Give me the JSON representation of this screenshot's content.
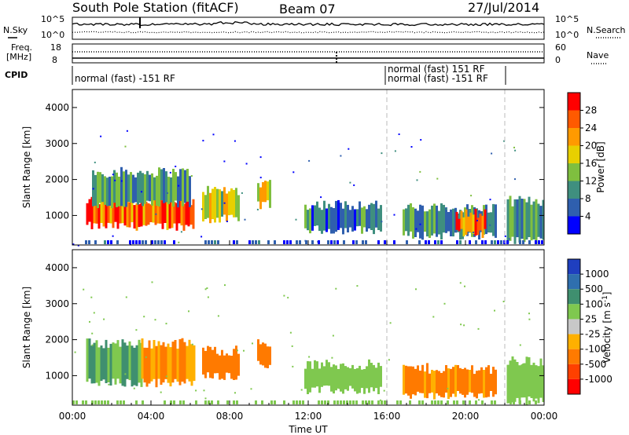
{
  "header": {
    "station": "South Pole Station (fitACF)",
    "beam": "Beam 07",
    "date": "27/Jul/2014"
  },
  "strip": {
    "nsky_label": "N.Sky",
    "nsearch_label": "N.Search",
    "noise_ticks_left": [
      "10^5",
      "10^0"
    ],
    "noise_ticks_right": [
      "10^5",
      "10^0"
    ],
    "freq_label_1": "Freq.",
    "freq_label_2": "[MHz]",
    "freq_ticks": [
      "18",
      "8"
    ],
    "nave_label": "Nave",
    "nave_ticks": [
      "60",
      "0"
    ],
    "cpid_label": "CPID",
    "cpid_segments": [
      {
        "text": "normal (fast) -151 RF"
      },
      {
        "text": "normal (fast) 151 RF"
      },
      {
        "text": "normal (fast) -151 RF"
      }
    ]
  },
  "chart_data": [
    {
      "type": "heatmap",
      "name": "power",
      "ylabel": "Slant Range [km]",
      "xlabel": "",
      "ylim": [
        180,
        4500
      ],
      "yticks": [
        "1000",
        "2000",
        "3000",
        "4000"
      ],
      "xlim_hours": [
        0,
        24
      ],
      "colorbar": {
        "label": "Power [dB]",
        "ticks": [
          "4",
          "8",
          "12",
          "16",
          "20",
          "24",
          "28"
        ],
        "colors": [
          "#0000ff",
          "#2f5fae",
          "#3f8f7f",
          "#7fbf3f",
          "#e8d000",
          "#ff9a00",
          "#ff5a00",
          "#ff0000"
        ]
      },
      "echo_regions": [
        {
          "start_h": 0.7,
          "end_h": 6.2,
          "low_km": 700,
          "high_km": 1400,
          "level": 26
        },
        {
          "start_h": 1.0,
          "end_h": 6.0,
          "low_km": 1300,
          "high_km": 2200,
          "level": 10
        },
        {
          "start_h": 6.6,
          "end_h": 8.5,
          "low_km": 900,
          "high_km": 1700,
          "level": 18
        },
        {
          "start_h": 9.4,
          "end_h": 10.1,
          "low_km": 1300,
          "high_km": 1900,
          "level": 16
        },
        {
          "start_h": 11.8,
          "end_h": 15.7,
          "low_km": 600,
          "high_km": 1300,
          "level": 8
        },
        {
          "start_h": 16.8,
          "end_h": 21.5,
          "low_km": 450,
          "high_km": 1200,
          "level": 10
        },
        {
          "start_h": 19.5,
          "end_h": 21.0,
          "low_km": 500,
          "high_km": 1050,
          "level": 24
        },
        {
          "start_h": 22.1,
          "end_h": 24.0,
          "low_km": 300,
          "high_km": 1400,
          "level": 9
        }
      ]
    },
    {
      "type": "heatmap",
      "name": "velocity",
      "ylabel": "Slant Range [km]",
      "xlabel": "Time UT",
      "ylim": [
        180,
        4500
      ],
      "yticks": [
        "1000",
        "2000",
        "3000",
        "4000"
      ],
      "xlim_hours": [
        0,
        24
      ],
      "xticks": [
        "00:00",
        "04:00",
        "08:00",
        "12:00",
        "16:00",
        "20:00",
        "00:00"
      ],
      "colorbar": {
        "label": "Velocity [m s-1]",
        "ticks": [
          "1000",
          "500",
          "100",
          "25",
          "-25",
          "-100",
          "-500",
          "-1000"
        ],
        "colors": [
          "#1f3fbf",
          "#2f6fae",
          "#3f8f6f",
          "#7fc84f",
          "#c8c8c8",
          "#ffb000",
          "#ff7a00",
          "#ff4000",
          "#ff0000"
        ]
      },
      "echo_regions": [
        {
          "start_h": 0.7,
          "end_h": 3.5,
          "low_km": 800,
          "high_km": 1900,
          "level": 100
        },
        {
          "start_h": 3.5,
          "end_h": 6.2,
          "low_km": 800,
          "high_km": 1900,
          "level": -100
        },
        {
          "start_h": 6.6,
          "end_h": 8.5,
          "low_km": 1000,
          "high_km": 1700,
          "level": -150
        },
        {
          "start_h": 9.4,
          "end_h": 10.1,
          "low_km": 1300,
          "high_km": 1900,
          "level": -150
        },
        {
          "start_h": 11.8,
          "end_h": 15.7,
          "low_km": 600,
          "high_km": 1300,
          "level": 50
        },
        {
          "start_h": 16.8,
          "end_h": 21.5,
          "low_km": 450,
          "high_km": 1200,
          "level": -120
        },
        {
          "start_h": 22.1,
          "end_h": 24.0,
          "low_km": 300,
          "high_km": 1400,
          "level": 60
        }
      ]
    }
  ]
}
